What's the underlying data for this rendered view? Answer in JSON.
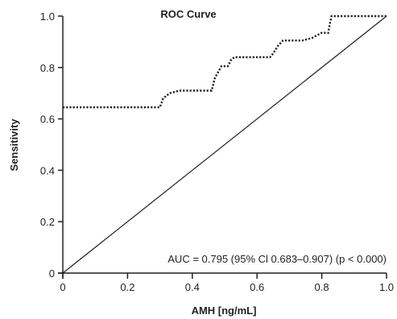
{
  "chart_data": {
    "type": "line",
    "title": "ROC Curve",
    "xlabel": "AMH [ng/mL]",
    "ylabel": "Sensitivity",
    "xlim": [
      0,
      1.0
    ],
    "ylim": [
      0,
      1.0
    ],
    "x_ticks": [
      "0",
      "0.2",
      "0.4",
      "0.6",
      "0.8",
      "1.0"
    ],
    "y_ticks": [
      "0",
      "0.2",
      "0.4",
      "0.6",
      "0.8",
      "1.0"
    ],
    "grid": false,
    "series": [
      {
        "style": "dotted",
        "x": [
          0,
          0.3,
          0.31,
          0.33,
          0.36,
          0.46,
          0.47,
          0.49,
          0.51,
          0.52,
          0.53,
          0.54,
          0.64,
          0.65,
          0.665,
          0.68,
          0.74,
          0.77,
          0.8,
          0.82,
          0.825,
          0.83,
          1.0
        ],
        "y": [
          0.645,
          0.645,
          0.68,
          0.7,
          0.71,
          0.71,
          0.76,
          0.805,
          0.805,
          0.83,
          0.84,
          0.84,
          0.84,
          0.855,
          0.885,
          0.905,
          0.905,
          0.915,
          0.935,
          0.935,
          0.97,
          1.0,
          1.0
        ]
      },
      {
        "style": "solid",
        "x": [
          0,
          1.0
        ],
        "y": [
          0,
          1.0
        ]
      }
    ],
    "annotation": "AUC = 0.795 (95% Cl 0.683–0.907) (p < 0.000)"
  }
}
